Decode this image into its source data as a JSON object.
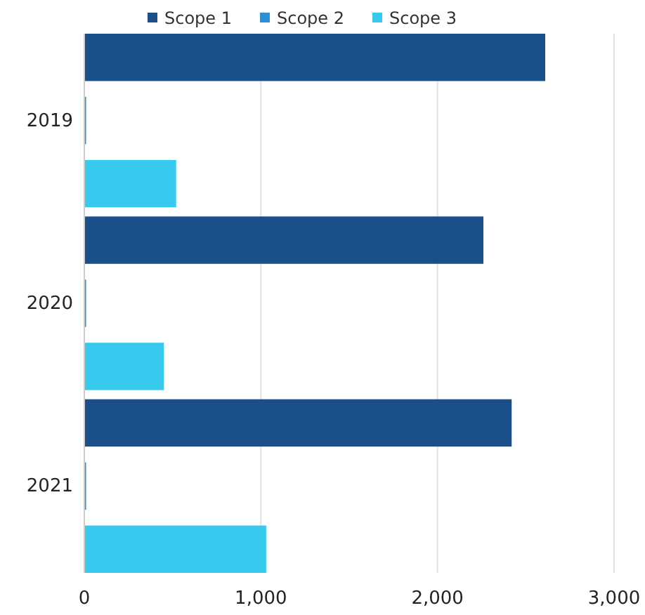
{
  "chart_data": {
    "type": "bar",
    "orientation": "horizontal",
    "categories": [
      "2019",
      "2020",
      "2021"
    ],
    "series": [
      {
        "name": "Scope 1",
        "color": "#1b4f8a",
        "values": [
          2610,
          2260,
          2420
        ]
      },
      {
        "name": "Scope 2",
        "color": "#2f8fd5",
        "values": [
          10,
          10,
          10
        ]
      },
      {
        "name": "Scope 3",
        "color": "#38c9ef",
        "values": [
          520,
          450,
          1030
        ]
      }
    ],
    "xlim": [
      0,
      3000
    ],
    "xticks": [
      0,
      {
        "value": 1000,
        "label": "1,000"
      },
      {
        "value": 2000,
        "label": "2,000"
      },
      {
        "value": 3000,
        "label": "3,000"
      }
    ],
    "grid": "x",
    "legend": "top"
  }
}
